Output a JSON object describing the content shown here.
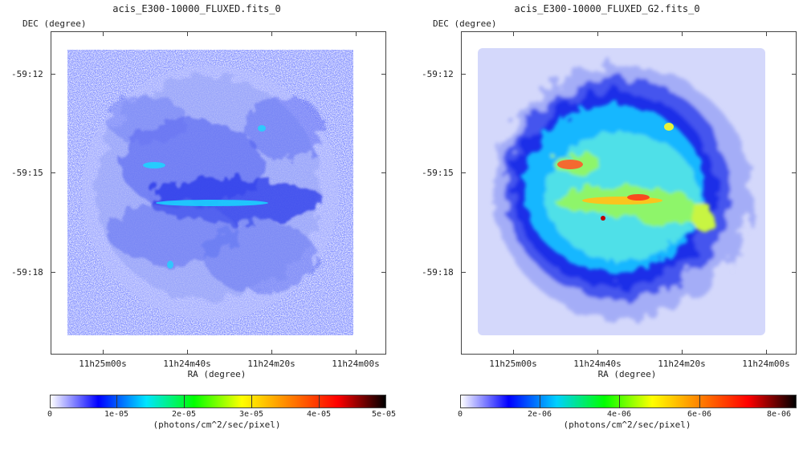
{
  "panels": [
    {
      "title": "acis_E300-10000_FLUXED.fits_0",
      "dec_label": "DEC (degree)",
      "ra_label": "RA (degree)",
      "dec_ticks": [
        "-59:12",
        "-59:15",
        "-59:18"
      ],
      "ra_ticks": [
        "11h25m00s",
        "11h24m40s",
        "11h24m20s",
        "11h24m00s"
      ],
      "colorbar_ticks": [
        "0",
        "1e-05",
        "2e-05",
        "3e-05",
        "4e-05",
        "5e-05"
      ],
      "colorbar_unit": "(photons/cm^2/sec/pixel)"
    },
    {
      "title": "acis_E300-10000_FLUXED_G2.fits_0",
      "dec_label": "DEC (degree)",
      "ra_label": "RA (degree)",
      "dec_ticks": [
        "-59:12",
        "-59:15",
        "-59:18"
      ],
      "ra_ticks": [
        "11h25m00s",
        "11h24m40s",
        "11h24m20s",
        "11h24m00s"
      ],
      "colorbar_ticks": [
        "0",
        "2e-06",
        "4e-06",
        "6e-06",
        "8e-06"
      ],
      "colorbar_unit": "(photons/cm^2/sec/pixel)"
    }
  ],
  "colormap": {
    "left": [
      "#ffffff",
      "#0000ff",
      "#00e5ff",
      "#00ff00",
      "#ffff00",
      "#ff8000",
      "#ff0000",
      "#000000"
    ],
    "right": [
      "#ffffff",
      "#0000ff",
      "#00d0ff",
      "#00ff00",
      "#ffff00",
      "#ff8000",
      "#ff0000",
      "#000000"
    ]
  }
}
